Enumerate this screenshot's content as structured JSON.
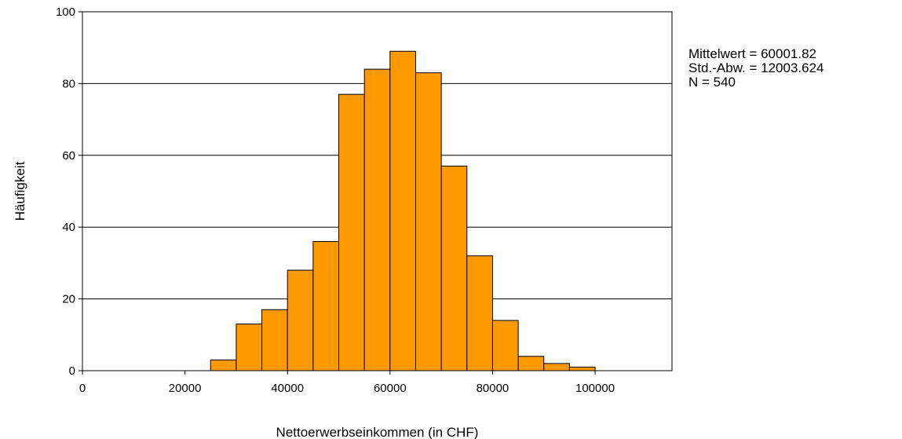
{
  "chart_data": {
    "type": "bar",
    "xlabel": "Nettoerwerbseinkommen (in CHF)",
    "ylabel": "Häufigkeit",
    "xlim": [
      0,
      115000
    ],
    "ylim": [
      0,
      100
    ],
    "bin_width": 5000,
    "x_ticks": [
      "0",
      "20000",
      "40000",
      "60000",
      "80000",
      "100000"
    ],
    "y_ticks": [
      "0",
      "20",
      "40",
      "60",
      "80",
      "100"
    ],
    "grid": "horizontal",
    "bar_color": "#ff9900",
    "bins": [
      {
        "start": 25000,
        "end": 30000,
        "count": 3
      },
      {
        "start": 30000,
        "end": 35000,
        "count": 13
      },
      {
        "start": 35000,
        "end": 40000,
        "count": 17
      },
      {
        "start": 40000,
        "end": 45000,
        "count": 28
      },
      {
        "start": 45000,
        "end": 50000,
        "count": 36
      },
      {
        "start": 50000,
        "end": 55000,
        "count": 77
      },
      {
        "start": 55000,
        "end": 60000,
        "count": 84
      },
      {
        "start": 60000,
        "end": 65000,
        "count": 89
      },
      {
        "start": 65000,
        "end": 70000,
        "count": 83
      },
      {
        "start": 70000,
        "end": 75000,
        "count": 57
      },
      {
        "start": 75000,
        "end": 80000,
        "count": 32
      },
      {
        "start": 80000,
        "end": 85000,
        "count": 14
      },
      {
        "start": 85000,
        "end": 90000,
        "count": 4
      },
      {
        "start": 90000,
        "end": 95000,
        "count": 2
      },
      {
        "start": 95000,
        "end": 100000,
        "count": 1
      }
    ]
  },
  "stats": {
    "mean": "Mittelwert = 60001.82",
    "sd": "Std.-Abw. = 12003.624",
    "n": "N = 540"
  }
}
